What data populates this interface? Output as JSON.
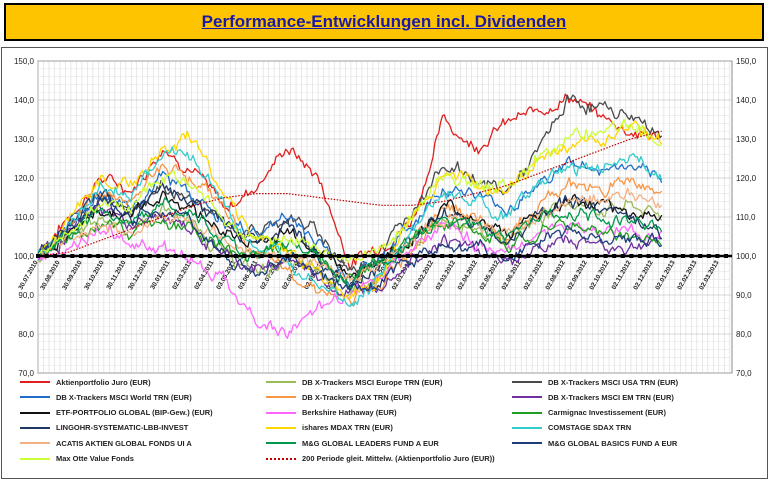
{
  "header": {
    "title": "Performance-Entwicklungen incl. Dividenden"
  },
  "chart_data": {
    "type": "line",
    "title": "Performance-Entwicklungen incl. Dividenden",
    "ylim": [
      70,
      150
    ],
    "yticks": [
      "70,0",
      "80,0",
      "90,0",
      "100,0",
      "110,0",
      "120,0",
      "130,0",
      "140,0",
      "150,0"
    ],
    "xticks": [
      "30.07.2010",
      "30.08.2010",
      "30.09.2010",
      "30.10.2010",
      "30.11.2010",
      "30.12.2010",
      "30.01.2011",
      "02.03.2011",
      "02.04.2011",
      "03.05.2011",
      "03.06.2011",
      "02.07.2011",
      "02.08.2011",
      "02.09.2011",
      "03.10.2011",
      "03.11.2011",
      "03.12.2011",
      "02.01.2012",
      "02.02.2012",
      "02.03.2012",
      "02.04.2012",
      "02.05.2012",
      "02.06.2012",
      "02.07.2012",
      "02.08.2012",
      "02.09.2012",
      "02.10.2012",
      "02.11.2012",
      "02.12.2012",
      "02.01.2013",
      "02.02.2013",
      "02.03.2013"
    ],
    "grid": true,
    "baseline": 100,
    "legend_position": "bottom",
    "series": [
      {
        "name": "Aktienportfolio Juro (EUR)",
        "color": "#e0201f",
        "keys": [
          100,
          110,
          120,
          117,
          128,
          122,
          112,
          118,
          128,
          120,
          98,
          103,
          109,
          135,
          128,
          134,
          137,
          141,
          136,
          132,
          130
        ]
      },
      {
        "name": "DB X-Trackers MSCI Europe TRN (EUR)",
        "color": "#9bbb59",
        "keys": [
          100,
          105,
          110,
          108,
          112,
          108,
          100,
          96,
          98,
          96,
          90,
          95,
          103,
          110,
          108,
          104,
          110,
          114,
          112,
          113,
          110
        ]
      },
      {
        "name": "DB X-Trackers MSCI USA TRN (EUR)",
        "color": "#4a4a4a",
        "keys": [
          100,
          108,
          114,
          111,
          118,
          114,
          108,
          106,
          110,
          106,
          96,
          101,
          112,
          124,
          120,
          116,
          126,
          140,
          138,
          136,
          131
        ]
      },
      {
        "name": "DB X-Trackers MSCI World TRN (EUR)",
        "color": "#1f6fc8",
        "keys": [
          100,
          108,
          116,
          113,
          120,
          116,
          108,
          106,
          110,
          104,
          94,
          100,
          108,
          118,
          116,
          112,
          118,
          124,
          122,
          123,
          118
        ]
      },
      {
        "name": "DB X-Trackers DAX TRN (EUR)",
        "color": "#f79646",
        "keys": [
          100,
          108,
          117,
          114,
          124,
          120,
          112,
          100,
          96,
          92,
          88,
          93,
          102,
          114,
          110,
          104,
          112,
          119,
          117,
          120,
          116
        ]
      },
      {
        "name": "DB X-Trackers MSCI EM TRN (EUR)",
        "color": "#7030a0",
        "keys": [
          100,
          106,
          112,
          108,
          110,
          106,
          100,
          96,
          100,
          94,
          90,
          94,
          100,
          104,
          102,
          98,
          102,
          104,
          103,
          102,
          104
        ]
      },
      {
        "name": "ETF-PORTFOLIO GLOBAL (BIP-Gew.) (EUR)",
        "color": "#111111",
        "keys": [
          100,
          106,
          112,
          110,
          116,
          112,
          106,
          103,
          106,
          102,
          95,
          99,
          104,
          112,
          110,
          106,
          110,
          114,
          112,
          111,
          110
        ]
      },
      {
        "name": "Berkshire Hathaway (EUR)",
        "color": "#ff66ff",
        "keys": [
          100,
          102,
          106,
          104,
          102,
          100,
          93,
          84,
          80,
          86,
          90,
          96,
          104,
          108,
          104,
          100,
          106,
          108,
          106,
          107,
          105
        ]
      },
      {
        "name": "Carmignac Investissement (EUR)",
        "color": "#1f9f1f",
        "keys": [
          100,
          104,
          108,
          106,
          110,
          106,
          102,
          100,
          102,
          98,
          96,
          100,
          104,
          108,
          106,
          103,
          106,
          108,
          106,
          105,
          104
        ]
      },
      {
        "name": "LINGOHR-SYSTEMATIC-LBB-INVEST",
        "color": "#203864",
        "keys": [
          100,
          108,
          116,
          112,
          118,
          114,
          108,
          104,
          108,
          100,
          92,
          98,
          104,
          112,
          108,
          102,
          110,
          114,
          112,
          110,
          106
        ]
      },
      {
        "name": "ishares MDAX TRN (EUR)",
        "color": "#ffd700",
        "keys": [
          100,
          110,
          120,
          118,
          128,
          130,
          116,
          104,
          100,
          96,
          90,
          95,
          110,
          122,
          118,
          116,
          124,
          128,
          130,
          134,
          128
        ]
      },
      {
        "name": "COMSTAGE SDAX TRN",
        "color": "#33cccc",
        "keys": [
          100,
          108,
          118,
          116,
          126,
          126,
          112,
          102,
          98,
          94,
          88,
          94,
          106,
          116,
          114,
          110,
          118,
          122,
          122,
          126,
          119
        ]
      },
      {
        "name": "ACATIS AKTIEN GLOBAL FONDS UI A",
        "color": "#f4b183",
        "keys": [
          100,
          104,
          108,
          106,
          110,
          108,
          104,
          100,
          100,
          98,
          94,
          98,
          104,
          110,
          108,
          106,
          110,
          114,
          114,
          116,
          114
        ]
      },
      {
        "name": "M&G GLOBAL LEADERS FUND A EUR",
        "color": "#00994c",
        "keys": [
          100,
          106,
          112,
          110,
          114,
          110,
          104,
          100,
          104,
          100,
          94,
          98,
          104,
          110,
          108,
          104,
          110,
          112,
          110,
          109,
          108
        ]
      },
      {
        "name": "M&G GLOBAL BASICS FUND A EUR",
        "color": "#1f3d7a",
        "keys": [
          100,
          108,
          114,
          110,
          112,
          108,
          100,
          96,
          100,
          96,
          90,
          94,
          100,
          104,
          102,
          98,
          104,
          106,
          104,
          104,
          103
        ]
      },
      {
        "name": "Max Otte Value Fonds",
        "color": "#ccff33",
        "keys": [
          100,
          106,
          114,
          112,
          120,
          118,
          110,
          104,
          104,
          102,
          98,
          102,
          110,
          120,
          118,
          118,
          124,
          130,
          132,
          134,
          129
        ]
      },
      {
        "name": "200 Periode gleit. Mittelw. (Aktienportfolio Juro (EUR))",
        "color": "#c00000",
        "dotted": true,
        "keys": [
          100,
          101,
          104,
          107,
          110,
          113,
          115,
          116,
          116,
          115,
          114,
          113,
          113,
          114,
          116,
          118,
          121,
          124,
          127,
          130,
          132
        ]
      }
    ]
  }
}
